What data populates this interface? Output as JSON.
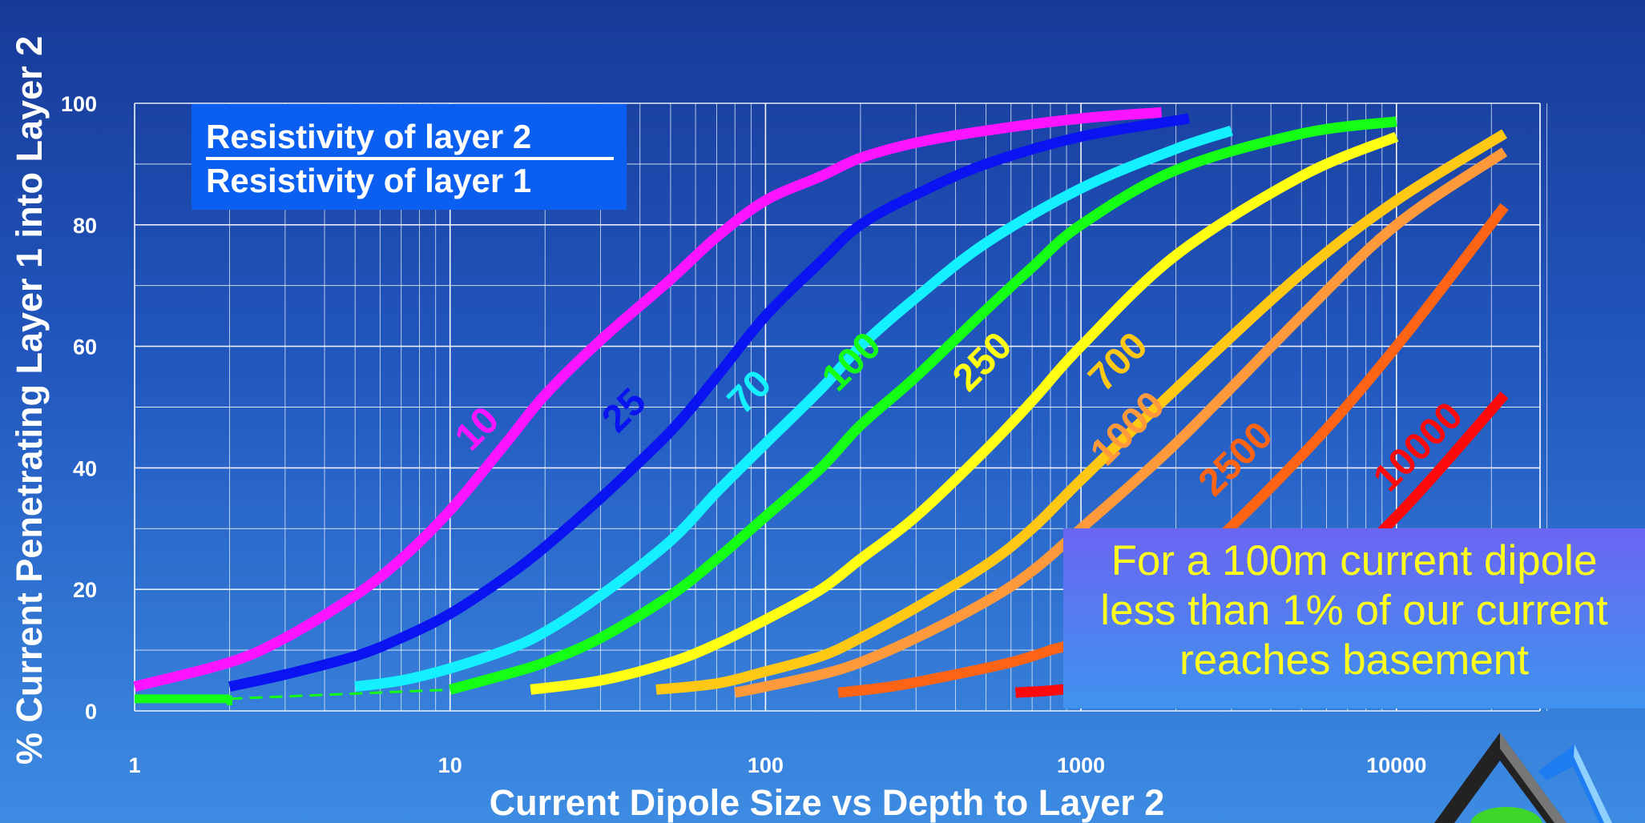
{
  "chart_data": {
    "type": "line",
    "xlabel": "Current Dipole Size vs Depth to Layer 2",
    "ylabel": "% Current Penetrating Layer 1 into Layer 2",
    "x_scale": "log",
    "xlim": [
      1,
      30000
    ],
    "ylim": [
      0,
      100
    ],
    "x_ticks": [
      {
        "value": 1,
        "label": "1"
      },
      {
        "value": 10,
        "label": "10"
      },
      {
        "value": 100,
        "label": "100"
      },
      {
        "value": 1000,
        "label": "1000"
      },
      {
        "value": 10000,
        "label": "10000"
      }
    ],
    "y_ticks": [
      {
        "value": 0,
        "label": "0"
      },
      {
        "value": 20,
        "label": "20"
      },
      {
        "value": 40,
        "label": "40"
      },
      {
        "value": 60,
        "label": "60"
      },
      {
        "value": 80,
        "label": "80"
      },
      {
        "value": 100,
        "label": "100"
      }
    ],
    "grid": true,
    "legend_title_numerator": "Resistivity of layer 2",
    "legend_title_denominator": "Resistivity of layer 1",
    "series": [
      {
        "name": "10",
        "color": "#ff14ff",
        "label_at": [
          13,
          45
        ],
        "points": [
          [
            1,
            4
          ],
          [
            2,
            8
          ],
          [
            3,
            12
          ],
          [
            5,
            19
          ],
          [
            7,
            25
          ],
          [
            10,
            33
          ],
          [
            15,
            44
          ],
          [
            20,
            52
          ],
          [
            30,
            61
          ],
          [
            50,
            71
          ],
          [
            70,
            78
          ],
          [
            100,
            84
          ],
          [
            150,
            88
          ],
          [
            200,
            91
          ],
          [
            300,
            93.5
          ],
          [
            500,
            95.5
          ],
          [
            1000,
            97.5
          ],
          [
            1800,
            98.5
          ]
        ]
      },
      {
        "name": "25",
        "color": "#0a14f0",
        "label_at": [
          38,
          48
        ],
        "points": [
          [
            2,
            4
          ],
          [
            3,
            6
          ],
          [
            5,
            9
          ],
          [
            7,
            12
          ],
          [
            10,
            16
          ],
          [
            15,
            22
          ],
          [
            20,
            27
          ],
          [
            30,
            35
          ],
          [
            50,
            46
          ],
          [
            70,
            55
          ],
          [
            100,
            65
          ],
          [
            150,
            74
          ],
          [
            200,
            80
          ],
          [
            300,
            85
          ],
          [
            500,
            90
          ],
          [
            1000,
            94.5
          ],
          [
            2200,
            97.5
          ]
        ]
      },
      {
        "name": "70",
        "color": "#14f0ff",
        "label_at": [
          95,
          51
        ],
        "points": [
          [
            5,
            4
          ],
          [
            7,
            5
          ],
          [
            10,
            7
          ],
          [
            15,
            10
          ],
          [
            20,
            13
          ],
          [
            30,
            19
          ],
          [
            50,
            28
          ],
          [
            70,
            36
          ],
          [
            100,
            44
          ],
          [
            150,
            53
          ],
          [
            200,
            60
          ],
          [
            300,
            68
          ],
          [
            500,
            77
          ],
          [
            1000,
            86
          ],
          [
            2000,
            92.5
          ],
          [
            3000,
            95.5
          ]
        ]
      },
      {
        "name": "100",
        "color": "#14ff14",
        "label_at": [
          200,
          56
        ],
        "points": [
          [
            10,
            3.5
          ],
          [
            15,
            6
          ],
          [
            20,
            8
          ],
          [
            30,
            12
          ],
          [
            50,
            19
          ],
          [
            70,
            25
          ],
          [
            100,
            32
          ],
          [
            150,
            40
          ],
          [
            200,
            47
          ],
          [
            300,
            55
          ],
          [
            500,
            66
          ],
          [
            700,
            73
          ],
          [
            1000,
            80
          ],
          [
            2000,
            89
          ],
          [
            5000,
            95
          ],
          [
            10000,
            97
          ]
        ]
      },
      {
        "name": "250",
        "color": "#ffff14",
        "label_at": [
          520,
          56
        ],
        "points": [
          [
            18,
            3.5
          ],
          [
            30,
            5
          ],
          [
            50,
            8
          ],
          [
            70,
            11
          ],
          [
            100,
            15
          ],
          [
            150,
            20
          ],
          [
            200,
            25
          ],
          [
            300,
            32
          ],
          [
            500,
            43
          ],
          [
            700,
            51
          ],
          [
            1000,
            60
          ],
          [
            2000,
            75
          ],
          [
            5000,
            88
          ],
          [
            10000,
            94.5
          ]
        ]
      },
      {
        "name": "700",
        "color": "#ffc814",
        "label_at": [
          1400,
          56
        ],
        "points": [
          [
            45,
            3.5
          ],
          [
            70,
            4.5
          ],
          [
            100,
            6.5
          ],
          [
            150,
            9
          ],
          [
            200,
            12
          ],
          [
            300,
            17
          ],
          [
            500,
            24
          ],
          [
            700,
            30
          ],
          [
            1000,
            38
          ],
          [
            2000,
            53
          ],
          [
            5000,
            72
          ],
          [
            10000,
            84
          ],
          [
            22000,
            95
          ]
        ]
      },
      {
        "name": "1000",
        "color": "#ff9a3c",
        "label_at": [
          1500,
          45
        ],
        "points": [
          [
            80,
            3
          ],
          [
            100,
            4
          ],
          [
            150,
            6
          ],
          [
            200,
            8
          ],
          [
            300,
            12
          ],
          [
            500,
            18
          ],
          [
            700,
            23
          ],
          [
            1000,
            30
          ],
          [
            2000,
            44
          ],
          [
            5000,
            65
          ],
          [
            10000,
            80
          ],
          [
            22000,
            92
          ]
        ]
      },
      {
        "name": "2500",
        "color": "#ff6414",
        "label_at": [
          3300,
          40
        ],
        "points": [
          [
            170,
            3
          ],
          [
            250,
            4
          ],
          [
            400,
            6
          ],
          [
            600,
            8
          ],
          [
            800,
            10
          ],
          [
            1000,
            12
          ],
          [
            2000,
            22
          ],
          [
            5000,
            42
          ],
          [
            10000,
            60
          ],
          [
            22000,
            83
          ]
        ]
      },
      {
        "name": "10000",
        "color": "#ff0a0a",
        "label_at": [
          12500,
          42
        ],
        "points": [
          [
            620,
            3
          ],
          [
            1000,
            4
          ],
          [
            2000,
            8
          ],
          [
            5000,
            18
          ],
          [
            10000,
            32
          ],
          [
            22000,
            52
          ]
        ]
      }
    ],
    "baseline": {
      "color": "#14ff14",
      "points": [
        [
          1,
          2
        ],
        [
          2,
          2
        ],
        [
          10,
          3.5
        ]
      ]
    }
  },
  "note": {
    "line1": "For a 100m current dipole",
    "line2": "less than 1% of our current",
    "line3": "reaches basement"
  }
}
